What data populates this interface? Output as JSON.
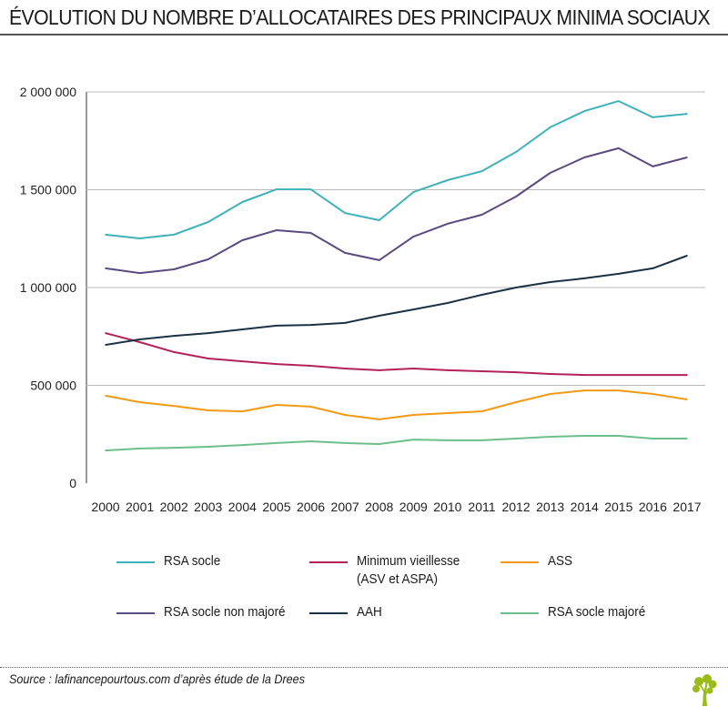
{
  "title": "ÉVOLUTION DU NOMBRE D’ALLOCATAIRES DES PRINCIPAUX MINIMA SOCIAUX",
  "source": "Source : lafinancepourtous.com d’après étude de la Drees",
  "chart_data": {
    "type": "line",
    "title": "ÉVOLUTION DU NOMBRE D’ALLOCATAIRES DES PRINCIPAUX MINIMA SOCIAUX",
    "x": [
      2000,
      2001,
      2002,
      2003,
      2004,
      2005,
      2006,
      2007,
      2008,
      2009,
      2010,
      2011,
      2012,
      2013,
      2014,
      2015,
      2016,
      2017
    ],
    "ylim": [
      0,
      2000000
    ],
    "yticks": [
      0,
      500000,
      1000000,
      1500000,
      2000000
    ],
    "ytick_labels": [
      "0",
      "500 000",
      "1 000 000",
      "1 500 000",
      "2 000 000"
    ],
    "grid": "horizontal",
    "legend": "bottom",
    "series": [
      {
        "name": "RSA socle",
        "color": "#3fb1b9",
        "values": [
          1270000,
          1251000,
          1270000,
          1335000,
          1437000,
          1502000,
          1502000,
          1381000,
          1344000,
          1488000,
          1549000,
          1595000,
          1693000,
          1819000,
          1902000,
          1953000,
          1870000,
          1888000
        ]
      },
      {
        "name": "RSA socle non majoré",
        "color": "#5a4a80",
        "values": [
          1098000,
          1074000,
          1093000,
          1144000,
          1242000,
          1293000,
          1279000,
          1177000,
          1140000,
          1260000,
          1326000,
          1372000,
          1465000,
          1586000,
          1665000,
          1712000,
          1619000,
          1665000
        ]
      },
      {
        "name": "Minimum vieillesse (ASV et ASPA)",
        "color": "#b3215a",
        "values": [
          767000,
          721000,
          670000,
          637000,
          623000,
          609000,
          600000,
          586000,
          577000,
          586000,
          577000,
          572000,
          567000,
          558000,
          553000,
          553000,
          553000,
          553000
        ]
      },
      {
        "name": "AAH",
        "color": "#1b3246",
        "values": [
          707000,
          735000,
          753000,
          767000,
          786000,
          805000,
          809000,
          819000,
          856000,
          888000,
          921000,
          963000,
          1000000,
          1028000,
          1047000,
          1070000,
          1098000,
          1163000
        ]
      },
      {
        "name": "ASS",
        "color": "#f39a14",
        "values": [
          447000,
          414000,
          395000,
          372000,
          367000,
          400000,
          391000,
          349000,
          326000,
          349000,
          358000,
          367000,
          414000,
          456000,
          474000,
          474000,
          456000,
          428000
        ]
      },
      {
        "name": "RSA socle majoré",
        "color": "#6cbf8b",
        "values": [
          167000,
          177000,
          181000,
          186000,
          195000,
          205000,
          214000,
          205000,
          200000,
          223000,
          219000,
          219000,
          228000,
          237000,
          242000,
          242000,
          228000,
          228000
        ]
      }
    ]
  },
  "legend": [
    {
      "line1": "RSA socle",
      "line2": "",
      "color": "#3fb1b9"
    },
    {
      "line1": "Minimum vieillesse",
      "line2": "(ASV et ASPA)",
      "color": "#b3215a"
    },
    {
      "line1": "ASS",
      "line2": "",
      "color": "#f39a14"
    },
    {
      "line1": "RSA socle non majoré",
      "line2": "",
      "color": "#5a4a80"
    },
    {
      "line1": "AAH",
      "line2": "",
      "color": "#1b3246"
    },
    {
      "line1": "RSA socle majoré",
      "line2": "",
      "color": "#6cbf8b"
    }
  ],
  "logo_color": "#9bbb1a"
}
